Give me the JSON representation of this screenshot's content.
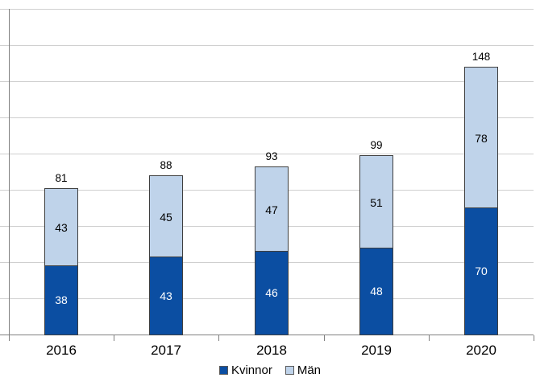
{
  "chart_data": {
    "type": "bar",
    "stacked": true,
    "categories": [
      "2016",
      "2017",
      "2018",
      "2019",
      "2020"
    ],
    "series": [
      {
        "name": "Kvinnor",
        "color": "#0B4EA2",
        "label_color": "#FFFFFF",
        "values": [
          38,
          43,
          46,
          48,
          70
        ]
      },
      {
        "name": "Män",
        "color": "#BFD3EA",
        "label_color": "#000000",
        "values": [
          43,
          45,
          47,
          51,
          78
        ]
      }
    ],
    "totals": [
      81,
      88,
      93,
      99,
      148
    ],
    "ylim": [
      0,
      180
    ],
    "grid_step": 20,
    "grid": true,
    "legend_position": "bottom",
    "style_colors": {
      "background": "#FFFFFF",
      "gridline": "#CFCFCF",
      "axis": "#808080",
      "bar_border": "#3F3F3F",
      "text": "#000000"
    }
  }
}
